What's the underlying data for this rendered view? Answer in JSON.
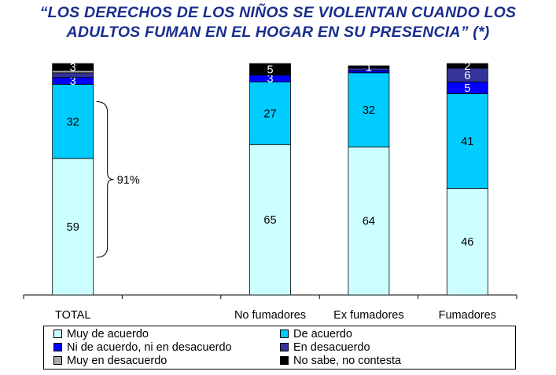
{
  "title": {
    "line1": "“LOS DERECHOS DE LOS NIÑOS SE VIOLENTAN CUANDO LOS",
    "line2": "ADULTOS FUMAN EN EL HOGAR EN SU PRESENCIA” (*)"
  },
  "chart_data": {
    "type": "bar",
    "stacked": true,
    "title": "“LOS DERECHOS DE LOS NIÑOS SE VIOLENTAN CUANDO LOS ADULTOS FUMAN EN EL HOGAR EN SU PRESENCIA” (*)",
    "categories": [
      "TOTAL",
      "",
      "No fumadores",
      "Ex fumadores",
      "Fumadores"
    ],
    "ylim": [
      0,
      100
    ],
    "grid": false,
    "legend_placement": "bottom",
    "series": [
      {
        "name": "Muy de acuerdo",
        "color": "#ccffff",
        "values": [
          59,
          null,
          65,
          64,
          46
        ],
        "labels": [
          "59",
          "",
          "65",
          "64",
          "46"
        ]
      },
      {
        "name": "De acuerdo",
        "color": "#00ccff",
        "values": [
          32,
          null,
          27,
          32,
          41
        ],
        "labels": [
          "32",
          "",
          "27",
          "32",
          "41"
        ]
      },
      {
        "name": "Ni de acuerdo, ni en desacuerdo",
        "color": "#0000ff",
        "values": [
          3,
          null,
          3,
          1,
          5
        ],
        "labels": [
          "3",
          "",
          "3",
          "",
          "5"
        ]
      },
      {
        "name": "En desacuerdo",
        "color": "#333399",
        "values": [
          2,
          null,
          0,
          1,
          6
        ],
        "labels": [
          "",
          "",
          "",
          "",
          "6"
        ]
      },
      {
        "name": "Muy en desacuerdo",
        "color": "#aaaaaa",
        "values": [
          1,
          null,
          0,
          0,
          0
        ],
        "labels": [
          "",
          "",
          "",
          "",
          ""
        ]
      },
      {
        "name": "No sabe, no contesta",
        "color": "#000000",
        "values": [
          3,
          null,
          5,
          1,
          2
        ],
        "labels": [
          "3",
          "",
          "5",
          "1",
          "2"
        ]
      }
    ],
    "annotations": [
      {
        "type": "brace",
        "category": "TOTAL",
        "covers": [
          "Muy de acuerdo",
          "De acuerdo"
        ],
        "text": "91%"
      }
    ]
  }
}
